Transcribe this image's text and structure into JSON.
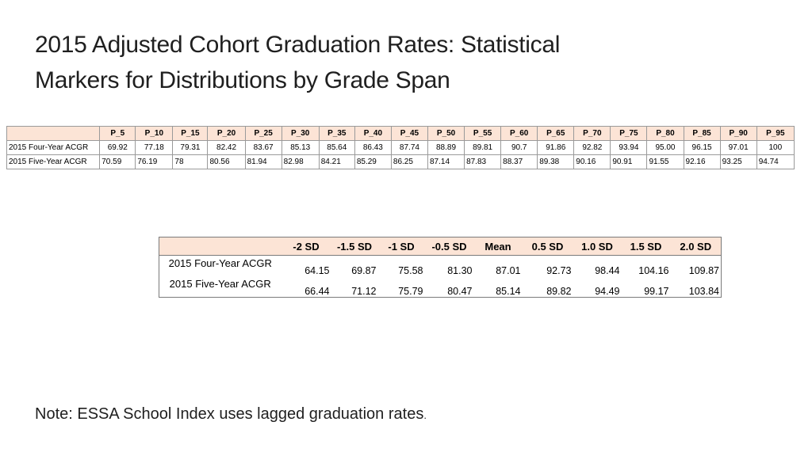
{
  "title": {
    "line1": "2015 Adjusted Cohort Graduation Rates: Statistical",
    "line2": "Markers for Distributions by Grade Span"
  },
  "percentile_table": {
    "headers": [
      "P_5",
      "P_10",
      "P_15",
      "P_20",
      "P_25",
      "P_30",
      "P_35",
      "P_40",
      "P_45",
      "P_50",
      "P_55",
      "P_60",
      "P_65",
      "P_70",
      "P_75",
      "P_80",
      "P_85",
      "P_90",
      "P_95"
    ],
    "rows": [
      {
        "label": "2015 Four-Year ACGR",
        "values": [
          "69.92",
          "77.18",
          "79.31",
          "82.42",
          "83.67",
          "85.13",
          "85.64",
          "86.43",
          "87.74",
          "88.89",
          "89.81",
          "90.7",
          "91.86",
          "92.82",
          "93.94",
          "95.00",
          "96.15",
          "97.01",
          "100"
        ]
      },
      {
        "label": "2015 Five-Year ACGR",
        "values": [
          "70.59",
          "76.19",
          "78",
          "80.56",
          "81.94",
          "82.98",
          "84.21",
          "85.29",
          "86.25",
          "87.14",
          "87.83",
          "88.37",
          "89.38",
          "90.16",
          "90.91",
          "91.55",
          "92.16",
          "93.25",
          "94.74"
        ]
      }
    ]
  },
  "sd_table": {
    "headers": [
      "-2 SD",
      "-1.5 SD",
      "-1 SD",
      "-0.5 SD",
      "Mean",
      "0.5 SD",
      "1.0 SD",
      "1.5 SD",
      "2.0 SD"
    ],
    "rows": [
      {
        "label": "2015 Four-Year ACGR",
        "values": [
          "64.15",
          "69.87",
          "75.58",
          "81.30",
          "87.01",
          "92.73",
          "98.44",
          "104.16",
          "109.87"
        ]
      },
      {
        "label": "2015 Five-Year ACGR",
        "values": [
          "66.44",
          "71.12",
          "75.79",
          "80.47",
          "85.14",
          "89.82",
          "94.49",
          "99.17",
          "103.84"
        ]
      }
    ]
  },
  "note": {
    "text": "Note: ESSA School Index uses lagged graduation rates",
    "end": "."
  }
}
